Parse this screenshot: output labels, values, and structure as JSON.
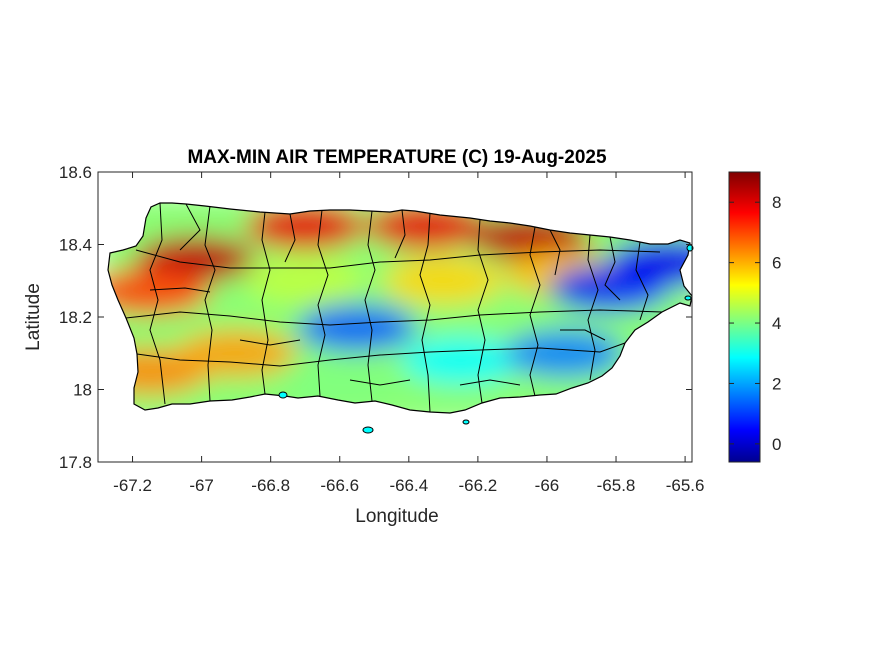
{
  "title": "MAX-MIN AIR TEMPERATURE (C) 19-Aug-2025",
  "x_axis": {
    "label": "Longitude",
    "range": [
      -67.3,
      -65.58
    ],
    "ticks": [
      {
        "value": -67.2,
        "label": "-67.2"
      },
      {
        "value": -67.0,
        "label": "-67"
      },
      {
        "value": -66.8,
        "label": "-66.8"
      },
      {
        "value": -66.6,
        "label": "-66.6"
      },
      {
        "value": -66.4,
        "label": "-66.4"
      },
      {
        "value": -66.2,
        "label": "-66.2"
      },
      {
        "value": -66.0,
        "label": "-66"
      },
      {
        "value": -65.8,
        "label": "-65.8"
      },
      {
        "value": -65.6,
        "label": "-65.6"
      }
    ]
  },
  "y_axis": {
    "label": "Latitude",
    "range": [
      17.8,
      18.6
    ],
    "ticks": [
      {
        "value": 17.8,
        "label": "17.8"
      },
      {
        "value": 18.0,
        "label": "18"
      },
      {
        "value": 18.2,
        "label": "18.2"
      },
      {
        "value": 18.4,
        "label": "18.4"
      },
      {
        "value": 18.6,
        "label": "18.6"
      }
    ]
  },
  "colorbar": {
    "colormap": "jet",
    "range": [
      -0.6,
      9.0
    ],
    "ticks": [
      {
        "value": 0,
        "label": "0"
      },
      {
        "value": 2,
        "label": "2"
      },
      {
        "value": 4,
        "label": "4"
      },
      {
        "value": 6,
        "label": "6"
      },
      {
        "value": 8,
        "label": "8"
      }
    ]
  },
  "field_hotspots": [
    {
      "lon": -67.02,
      "lat": 18.36,
      "value": 8.4
    },
    {
      "lon": -66.7,
      "lat": 18.45,
      "value": 8.0
    },
    {
      "lon": -66.35,
      "lat": 18.45,
      "value": 8.0
    },
    {
      "lon": -66.05,
      "lat": 18.42,
      "value": 8.4
    },
    {
      "lon": -67.15,
      "lat": 18.27,
      "value": 7.2
    },
    {
      "lon": -67.15,
      "lat": 18.05,
      "value": 6.5
    },
    {
      "lon": -66.9,
      "lat": 18.1,
      "value": 6.3
    },
    {
      "lon": -66.3,
      "lat": 18.3,
      "value": 5.8
    },
    {
      "lon": -65.95,
      "lat": 18.32,
      "value": 6.0
    },
    {
      "lon": -66.55,
      "lat": 18.17,
      "value": 1.5
    },
    {
      "lon": -66.25,
      "lat": 18.08,
      "value": 3.0
    },
    {
      "lon": -65.82,
      "lat": 18.28,
      "value": 1.0
    },
    {
      "lon": -65.65,
      "lat": 18.35,
      "value": 0.5
    },
    {
      "lon": -65.95,
      "lat": 18.1,
      "value": 1.8
    },
    {
      "lon": -66.6,
      "lat": 18.02,
      "value": 4.2
    },
    {
      "lon": -66.7,
      "lat": 18.3,
      "value": 4.8
    }
  ]
}
